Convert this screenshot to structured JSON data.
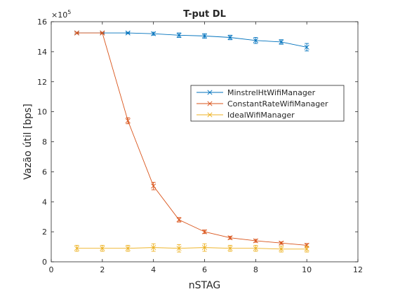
{
  "chart_data": {
    "type": "line",
    "title": "T-put DL",
    "xlabel": "nSTAG",
    "ylabel": "Vazão útil [bps]",
    "y_exponent_base": "×10",
    "y_exponent_power": "5",
    "xlim": [
      0,
      12
    ],
    "ylim": [
      0,
      16
    ],
    "xticks": [
      0,
      2,
      4,
      6,
      8,
      10,
      12
    ],
    "yticks": [
      0,
      2,
      4,
      6,
      8,
      10,
      12,
      14,
      16
    ],
    "legend_position": "upper-right-inside",
    "x": [
      1,
      2,
      3,
      4,
      5,
      6,
      7,
      8,
      9,
      10
    ],
    "series": [
      {
        "name": "MinstrelHtWifiManager",
        "color": "#0072BD",
        "values": [
          15.25,
          15.25,
          15.25,
          15.2,
          15.1,
          15.05,
          14.95,
          14.75,
          14.65,
          14.3
        ],
        "errors": [
          0.05,
          0.05,
          0.05,
          0.1,
          0.15,
          0.15,
          0.15,
          0.2,
          0.15,
          0.25
        ]
      },
      {
        "name": "ConstantRateWifiManager",
        "color": "#D95319",
        "values": [
          15.25,
          15.25,
          9.4,
          5.05,
          2.8,
          2.0,
          1.6,
          1.4,
          1.25,
          1.1
        ],
        "errors": [
          0.05,
          0.05,
          0.2,
          0.25,
          0.15,
          0.12,
          0.1,
          0.1,
          0.08,
          0.12
        ]
      },
      {
        "name": "IdealWifiManager",
        "color": "#EDB120",
        "values": [
          0.9,
          0.9,
          0.9,
          0.95,
          0.9,
          0.95,
          0.9,
          0.9,
          0.85,
          0.85
        ],
        "errors": [
          0.2,
          0.2,
          0.2,
          0.25,
          0.25,
          0.25,
          0.2,
          0.2,
          0.2,
          0.2
        ]
      }
    ]
  }
}
